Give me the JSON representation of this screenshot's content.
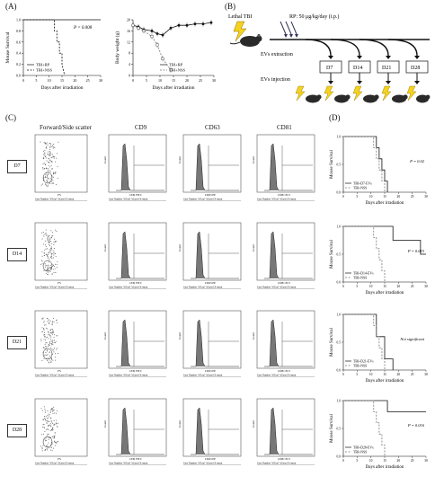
{
  "panels": {
    "A": "(A)",
    "B": "(B)",
    "C": "(C)",
    "D": "(D)"
  },
  "panelA": {
    "survival": {
      "ylabel": "Mouse Survival",
      "xlabel": "Days after irradiation",
      "pvalue": "P = 0.008",
      "legend": [
        "TBI+RP",
        "TBI+NSS"
      ],
      "yticks": [
        "0.0",
        "0.2",
        "0.4",
        "0.6",
        "0.8",
        "1.0"
      ],
      "xticks": [
        "0",
        "5",
        "10",
        "15",
        "20",
        "25",
        "30"
      ]
    },
    "weight": {
      "ylabel": "Body weight (g)",
      "xlabel": "Days after irradiation",
      "legend": [
        "TBI+RP",
        "TBI+NSS"
      ],
      "yticks": [
        "0",
        "4",
        "8",
        "12",
        "16",
        "20"
      ],
      "xticks": [
        "0",
        "5",
        "10",
        "15",
        "20",
        "25",
        "30"
      ]
    }
  },
  "panelB": {
    "lethal": "Lethal TBI",
    "rp": "RP: 50 μg/kg/day (i.p.)",
    "extraction": "EVs extraction",
    "injection": "EVs injection",
    "days": [
      "D7",
      "D14",
      "D21",
      "D28"
    ]
  },
  "panelC": {
    "headers": [
      "Forward/Side scatter",
      "CD9",
      "CD63",
      "CD81"
    ],
    "rows": [
      "D7",
      "D14",
      "D21",
      "D28"
    ],
    "axes": {
      "fs": "FS",
      "cd9": "CD9 FITC",
      "cd63": "CD63 PE",
      "cd81": "CD81 PC5",
      "count": "Count"
    },
    "table_header": "Gate  Number  %Total  %Gated  X-mean"
  },
  "panelD": {
    "ylabel": "Mouse Survival",
    "xlabel": "Days after irradiation",
    "plots": [
      {
        "legend": [
          "TBI+D7-EVs",
          "TBI+NSS"
        ],
        "pvalue": "P = 0.02"
      },
      {
        "legend": [
          "TBI+D14-EVs",
          "TBI+NSS"
        ],
        "pvalue": "P = 0.015"
      },
      {
        "legend": [
          "TBI+D21-EVs",
          "TBI+NSS"
        ],
        "pvalue": "Not significant"
      },
      {
        "legend": [
          "TBI+D28-EVs",
          "TBI+NSS"
        ],
        "pvalue": "P = 0.016"
      }
    ],
    "yticks": [
      "0.0",
      "0.5",
      "1.0"
    ],
    "xticks": [
      "0",
      "5",
      "10",
      "15",
      "20",
      "25",
      "30"
    ]
  },
  "chart_data": [
    {
      "type": "line",
      "title": "",
      "ylabel": "Mouse Survival",
      "xlabel": "Days after irradiation",
      "ylim": [
        0,
        1
      ],
      "xlim": [
        0,
        30
      ],
      "series": [
        {
          "name": "TBI+RP",
          "x": [
            0,
            30
          ],
          "y": [
            1.0,
            1.0
          ]
        },
        {
          "name": "TBI+NSS",
          "x": [
            0,
            12,
            12,
            13,
            13,
            14,
            14,
            15,
            15,
            16
          ],
          "y": [
            1.0,
            1.0,
            0.8,
            0.8,
            0.6,
            0.6,
            0.4,
            0.4,
            0.2,
            0.0
          ]
        }
      ]
    },
    {
      "type": "line",
      "ylabel": "Body weight (g)",
      "xlabel": "Days after irradiation",
      "ylim": [
        0,
        20
      ],
      "xlim": [
        0,
        30
      ],
      "series": [
        {
          "name": "TBI+RP",
          "x": [
            0,
            2,
            4,
            7,
            9,
            11,
            14,
            17,
            20,
            23,
            26,
            29
          ],
          "y": [
            18,
            17.5,
            16.5,
            16,
            15,
            14.5,
            17,
            18,
            18,
            18.5,
            18.5,
            19
          ]
        },
        {
          "name": "TBI+NSS",
          "x": [
            0,
            2,
            4,
            7,
            9,
            11,
            14
          ],
          "y": [
            18,
            17,
            16,
            14,
            11,
            6,
            2
          ]
        }
      ]
    }
  ]
}
